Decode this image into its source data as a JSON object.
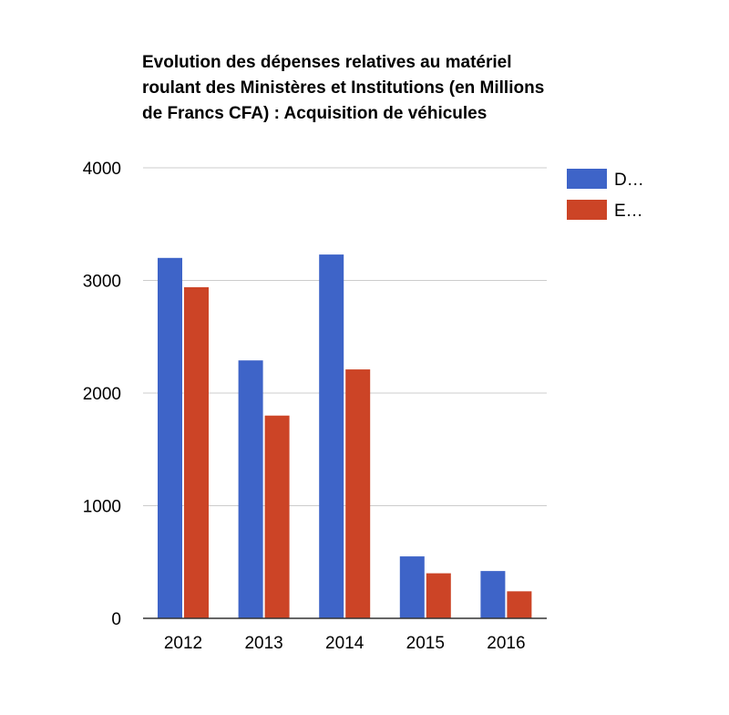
{
  "chart_data": {
    "type": "bar",
    "title": "Evolution des dépenses relatives au matériel roulant des Ministères et Institutions (en Millions de Francs CFA) : Acquisition de véhicules",
    "xlabel": "",
    "ylabel": "",
    "categories": [
      "2012",
      "2013",
      "2014",
      "2015",
      "2016"
    ],
    "ylim": [
      0,
      4000
    ],
    "yticks": [
      0,
      1000,
      2000,
      3000,
      4000
    ],
    "grid": true,
    "legend_position": "right",
    "series": [
      {
        "name": "D…",
        "color": "#3e64c8",
        "values": [
          3200,
          2290,
          3230,
          550,
          420
        ]
      },
      {
        "name": "E…",
        "color": "#cc4426",
        "values": [
          2940,
          1800,
          2210,
          400,
          240
        ]
      }
    ]
  }
}
